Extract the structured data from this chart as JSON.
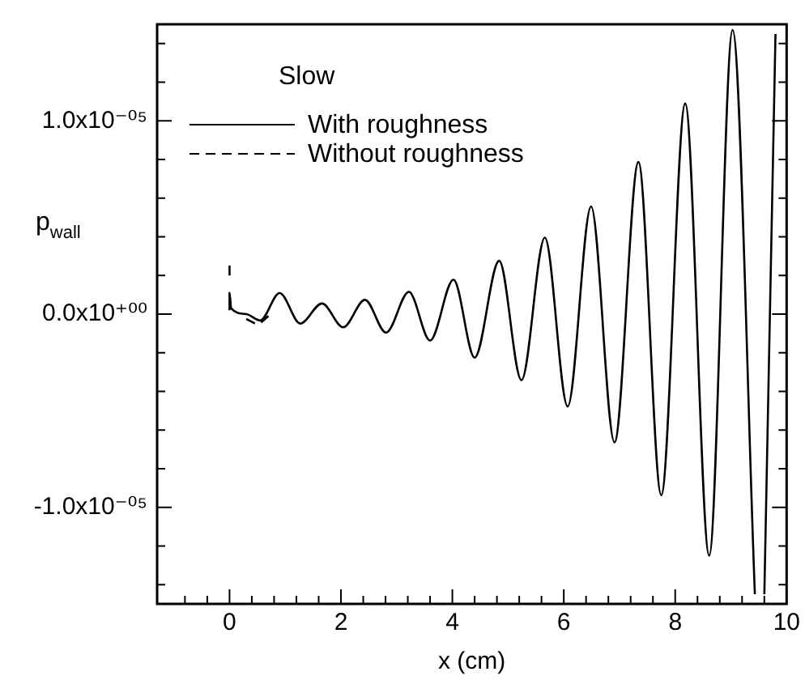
{
  "chart_data": {
    "type": "line",
    "xlabel": "x (cm)",
    "ylabel": "p$_{wall}$",
    "annotations": [
      "Slow"
    ],
    "legend": "top left",
    "xlim": [
      -1.3,
      10
    ],
    "xticks": [
      {
        "value": -0.8,
        "label": null
      },
      {
        "value": -0.4,
        "label": null
      },
      0,
      {
        "value": 0.4,
        "label": null
      },
      {
        "value": 0.8,
        "label": null
      },
      {
        "value": 1.2,
        "label": null
      },
      {
        "value": 1.6,
        "label": null
      },
      2,
      {
        "value": 2.4,
        "label": null
      },
      {
        "value": 2.8,
        "label": null
      },
      {
        "value": 3.2,
        "label": null
      },
      {
        "value": 3.6,
        "label": null
      },
      4,
      {
        "value": 4.4,
        "label": null
      },
      {
        "value": 4.8,
        "label": null
      },
      {
        "value": 5.2,
        "label": null
      },
      {
        "value": 5.6,
        "label": null
      },
      6,
      {
        "value": 6.4,
        "label": null
      },
      {
        "value": 6.8,
        "label": null
      },
      {
        "value": 7.2,
        "label": null
      },
      {
        "value": 7.6,
        "label": null
      },
      8,
      {
        "value": 8.4,
        "label": null
      },
      {
        "value": 8.8,
        "label": null
      },
      {
        "value": 9.2,
        "label": null
      },
      {
        "value": 9.6,
        "label": null
      },
      10
    ],
    "ylim": [
      -1.5e-05,
      1.5e-05
    ],
    "yticks": [
      {
        "value": -1.4e-05,
        "label": null
      },
      {
        "value": -1.2e-05,
        "label": null
      },
      {
        "value": -1e-05,
        "label": "-1.0x10⁻⁰⁵"
      },
      {
        "value": -8e-06,
        "label": null
      },
      {
        "value": -6e-06,
        "label": null
      },
      {
        "value": -4e-06,
        "label": null
      },
      {
        "value": -2e-06,
        "label": null
      },
      {
        "value": 0,
        "label": "0.0x10⁺⁰⁰"
      },
      {
        "value": 2e-06,
        "label": null
      },
      {
        "value": 4e-06,
        "label": null
      },
      {
        "value": 6e-06,
        "label": null
      },
      {
        "value": 8e-06,
        "label": null
      },
      {
        "value": 1e-05,
        "label": "1.0x10⁻⁰⁵"
      },
      {
        "value": 1.2e-05,
        "label": null
      },
      {
        "value": 1.4e-05,
        "label": null
      }
    ],
    "grid": false,
    "series": [
      {
        "name": "With roughness",
        "color": "#000000",
        "line_style": "solid",
        "x": [
          0,
          0,
          0.03,
          0.3,
          0.55,
          0.9,
          1.27,
          1.66,
          2.04,
          2.43,
          2.81,
          3.22,
          3.6,
          4.02,
          4.4,
          4.84,
          5.24,
          5.66,
          6.07,
          6.49,
          6.91,
          7.34,
          7.75,
          8.18,
          8.61,
          9.03,
          9.43,
          9.5,
          9.6,
          9.8
        ],
        "values": [
          2e-07,
          1.1e-06,
          3e-07,
          0,
          -3.3e-07,
          1.09e-06,
          -4.9e-07,
          5.5e-07,
          -6.8e-07,
          7.4e-07,
          -9.6e-07,
          1.15e-06,
          -1.37e-06,
          1.78e-06,
          -2.25e-06,
          2.76e-06,
          -3.42e-06,
          3.96e-06,
          -4.78e-06,
          5.57e-06,
          -6.64e-06,
          7.87e-06,
          -9.37e-06,
          1.09e-05,
          -1.25e-05,
          1.47e-05,
          -1.45e-05,
          null,
          -1.45e-05,
          1.45e-05
        ]
      },
      {
        "name": "Without roughness",
        "color": "#000000",
        "line_style": "dashed",
        "x": [
          0,
          0,
          0.1,
          0.3,
          0.5,
          0.7
        ],
        "values": [
          2e-06,
          2.7e-06,
          null,
          -2.5e-07,
          -5e-07,
          -1e-07
        ]
      }
    ]
  }
}
